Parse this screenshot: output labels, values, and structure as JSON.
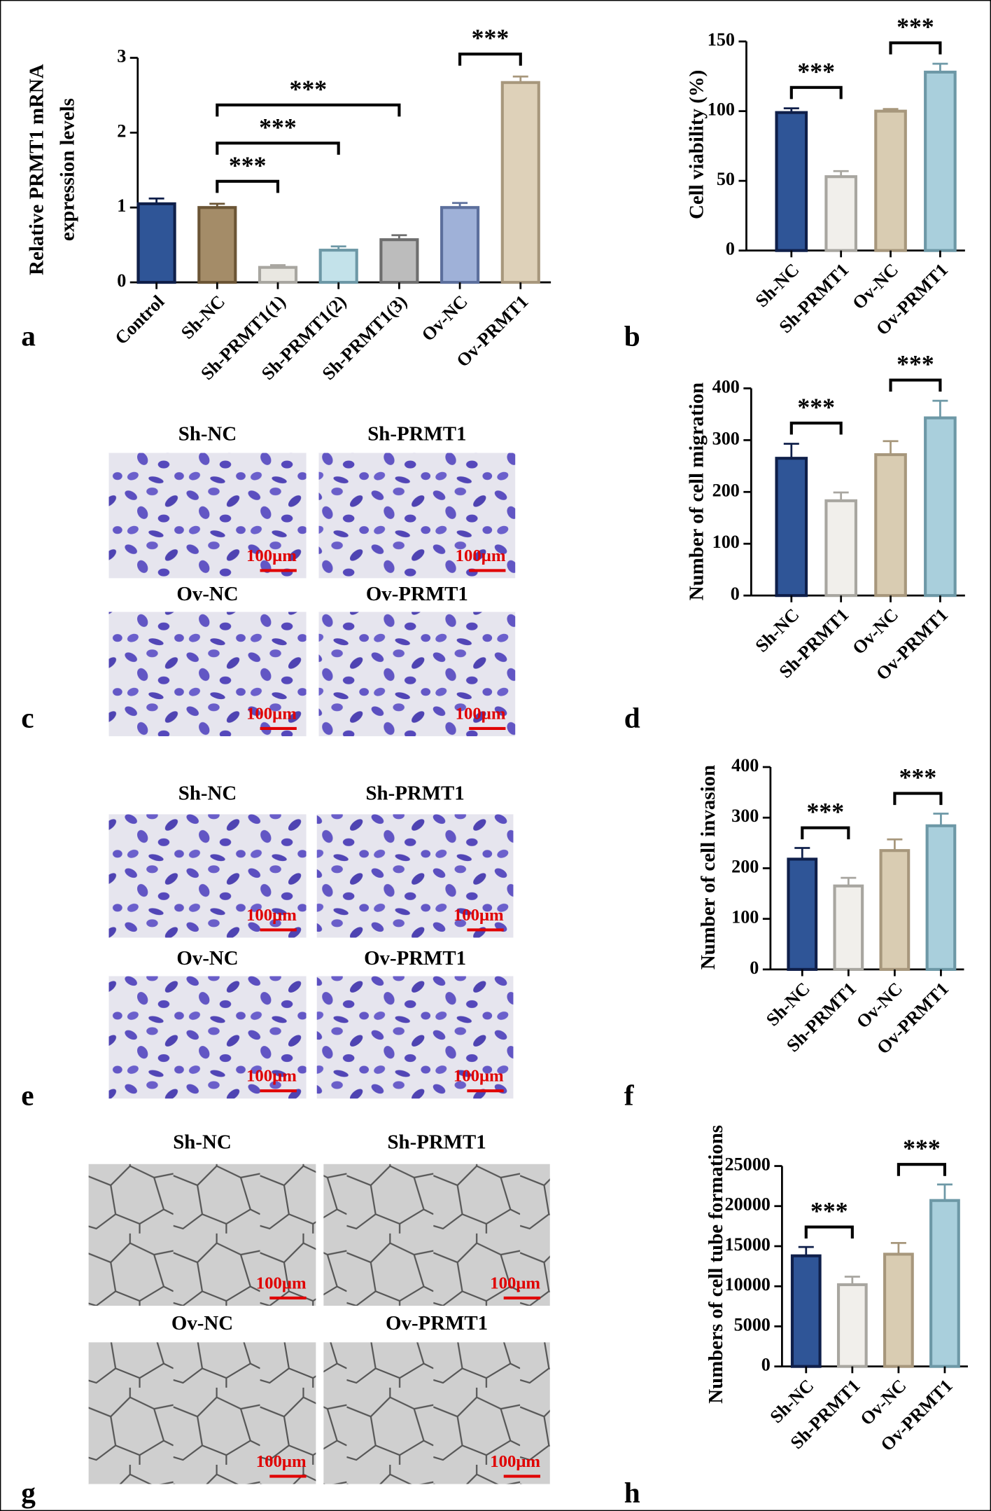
{
  "chart_data": [
    {
      "type": "bar",
      "panel": "a",
      "y_label": [
        "Relative PRMT1 mRNA",
        "expression levels"
      ],
      "categories": [
        "Control",
        "Sh-NC",
        "Sh-PRMT1(1)",
        "Sh-PRMT1(2)",
        "Sh-PRMT1(3)",
        "Ov-NC",
        "Ov-PRMT1"
      ],
      "values": [
        1.05,
        1.0,
        0.2,
        0.43,
        0.57,
        1.0,
        2.67
      ],
      "errors": [
        0.07,
        0.05,
        0.03,
        0.05,
        0.06,
        0.06,
        0.08
      ],
      "colors": [
        "#2f5597",
        "#a48c68",
        "#e9e7e1",
        "#c3e2ea",
        "#bcbcbc",
        "#9fb1d8",
        "#ded1b9"
      ],
      "edge_colors": [
        "#0f1f4a",
        "#6b5535",
        "#a8a6a0",
        "#6d98a6",
        "#6e6e6e",
        "#5c6f9c",
        "#a7977c"
      ],
      "ylim": [
        0,
        3
      ],
      "yticks": [
        0,
        1,
        2,
        3
      ],
      "annotations": [
        {
          "between": [
            "Sh-NC",
            "Sh-PRMT1(1)"
          ],
          "label": "***"
        },
        {
          "between": [
            "Sh-NC",
            "Sh-PRMT1(2)"
          ],
          "label": "***"
        },
        {
          "between": [
            "Sh-NC",
            "Sh-PRMT1(3)"
          ],
          "label": "***"
        },
        {
          "between": [
            "Ov-NC",
            "Ov-PRMT1"
          ],
          "label": "***"
        }
      ]
    },
    {
      "type": "bar",
      "panel": "b",
      "y_label": [
        "Cell viability (%)"
      ],
      "categories": [
        "Sh-NC",
        "Sh-PRMT1",
        "Ov-NC",
        "Ov-PRMT1"
      ],
      "values": [
        99,
        53,
        100,
        128
      ],
      "errors": [
        3,
        4,
        1.5,
        6
      ],
      "colors": [
        "#2f5597",
        "#f1efeb",
        "#d9ccb2",
        "#a9cfdc"
      ],
      "edge_colors": [
        "#0f1f4a",
        "#a8a6a0",
        "#a7977c",
        "#6d98a6"
      ],
      "ylim": [
        0,
        150
      ],
      "yticks": [
        0,
        50,
        100,
        150
      ],
      "annotations": [
        {
          "between": [
            "Sh-NC",
            "Sh-PRMT1"
          ],
          "label": "***"
        },
        {
          "between": [
            "Ov-NC",
            "Ov-PRMT1"
          ],
          "label": "***"
        }
      ]
    },
    {
      "type": "bar",
      "panel": "d",
      "y_label": [
        "Number of cell migration"
      ],
      "categories": [
        "Sh-NC",
        "Sh-PRMT1",
        "Ov-NC",
        "Ov-PRMT1"
      ],
      "values": [
        265,
        183,
        272,
        343
      ],
      "errors": [
        28,
        16,
        26,
        33
      ],
      "colors": [
        "#2f5597",
        "#f1efeb",
        "#d9ccb2",
        "#a9cfdc"
      ],
      "edge_colors": [
        "#0f1f4a",
        "#a8a6a0",
        "#a7977c",
        "#6d98a6"
      ],
      "ylim": [
        0,
        400
      ],
      "yticks": [
        0,
        100,
        200,
        300,
        400
      ],
      "annotations": [
        {
          "between": [
            "Sh-NC",
            "Sh-PRMT1"
          ],
          "label": "***"
        },
        {
          "between": [
            "Ov-NC",
            "Ov-PRMT1"
          ],
          "label": "***"
        }
      ]
    },
    {
      "type": "bar",
      "panel": "f",
      "y_label": [
        "Number of cell invasion"
      ],
      "categories": [
        "Sh-NC",
        "Sh-PRMT1",
        "Ov-NC",
        "Ov-PRMT1"
      ],
      "values": [
        218,
        165,
        235,
        284
      ],
      "errors": [
        22,
        16,
        22,
        24
      ],
      "colors": [
        "#2f5597",
        "#f1efeb",
        "#d9ccb2",
        "#a9cfdc"
      ],
      "edge_colors": [
        "#0f1f4a",
        "#a8a6a0",
        "#a7977c",
        "#6d98a6"
      ],
      "ylim": [
        0,
        400
      ],
      "yticks": [
        0,
        100,
        200,
        300,
        400
      ],
      "annotations": [
        {
          "between": [
            "Sh-NC",
            "Sh-PRMT1"
          ],
          "label": "***"
        },
        {
          "between": [
            "Ov-NC",
            "Ov-PRMT1"
          ],
          "label": "***"
        }
      ]
    },
    {
      "type": "bar",
      "panel": "h",
      "y_label": [
        "Numbers of cell tube formations"
      ],
      "categories": [
        "Sh-NC",
        "Sh-PRMT1",
        "Ov-NC",
        "Ov-PRMT1"
      ],
      "values": [
        13800,
        10200,
        14000,
        20700
      ],
      "errors": [
        1100,
        1000,
        1400,
        2000
      ],
      "colors": [
        "#2f5597",
        "#f1efeb",
        "#d9ccb2",
        "#a9cfdc"
      ],
      "edge_colors": [
        "#0f1f4a",
        "#a8a6a0",
        "#a7977c",
        "#6d98a6"
      ],
      "ylim": [
        0,
        25000
      ],
      "yticks": [
        0,
        5000,
        10000,
        15000,
        20000,
        25000
      ],
      "annotations": [
        {
          "between": [
            "Sh-NC",
            "Sh-PRMT1"
          ],
          "label": "***"
        },
        {
          "between": [
            "Ov-NC",
            "Ov-PRMT1"
          ],
          "label": "***"
        }
      ]
    }
  ],
  "micrographs": [
    {
      "panel": "c",
      "images": [
        {
          "title": "Sh-NC",
          "scale": "100μm"
        },
        {
          "title": "Sh-PRMT1",
          "scale": "100μm"
        },
        {
          "title": "Ov-NC",
          "scale": "100μm"
        },
        {
          "title": "Ov-PRMT1",
          "scale": "100μm"
        }
      ]
    },
    {
      "panel": "e",
      "images": [
        {
          "title": "Sh-NC",
          "scale": "100μm"
        },
        {
          "title": "Sh-PRMT1",
          "scale": "100μm"
        },
        {
          "title": "Ov-NC",
          "scale": "100μm"
        },
        {
          "title": "Ov-PRMT1",
          "scale": "100μm"
        }
      ]
    },
    {
      "panel": "g",
      "images": [
        {
          "title": "Sh-NC",
          "scale": "100μm"
        },
        {
          "title": "Sh-PRMT1",
          "scale": "100μm"
        },
        {
          "title": "Ov-NC",
          "scale": "100μm"
        },
        {
          "title": "Ov-PRMT1",
          "scale": "100μm"
        }
      ]
    }
  ]
}
